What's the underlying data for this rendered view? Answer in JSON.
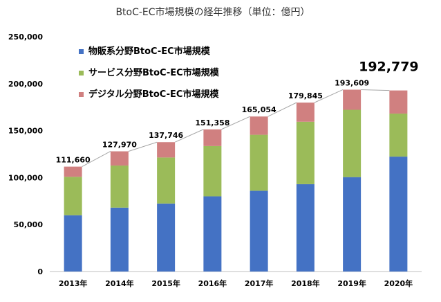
{
  "chart_data": {
    "type": "bar",
    "stacked": true,
    "title": "BtoC-EC市場規模の経年推移（単位：億円）",
    "categories": [
      "2013年",
      "2014年",
      "2015年",
      "2016年",
      "2017年",
      "2018年",
      "2019年",
      "2020年"
    ],
    "series": [
      {
        "name": "物販系分野BtoC-EC市場規模",
        "color": "#4472C4",
        "values": [
          59931,
          68043,
          72398,
          80043,
          86008,
          92992,
          100515,
          122333
        ]
      },
      {
        "name": "サービス分野BtoC-EC市場規模",
        "color": "#9BBB59",
        "values": [
          40934,
          44816,
          49014,
          53532,
          59568,
          66471,
          71672,
          45832
        ]
      },
      {
        "name": "デジタル分野BtoC-EC市場規模",
        "color": "#D08080",
        "values": [
          10795,
          15111,
          16334,
          17783,
          19478,
          20382,
          21422,
          24614
        ]
      }
    ],
    "totals": [
      "111,660",
      "127,970",
      "137,746",
      "151,358",
      "165,054",
      "179,845",
      "193,609",
      "192,779"
    ],
    "total_values": [
      111660,
      127970,
      137746,
      151358,
      165054,
      179845,
      193609,
      192779
    ],
    "highlight_total_index": 7,
    "yticks": [
      "0",
      "50,000",
      "100,000",
      "150,000",
      "200,000",
      "250,000"
    ],
    "ytick_values": [
      0,
      50000,
      100000,
      150000,
      200000,
      250000
    ],
    "ylim": [
      0,
      250000
    ],
    "grid": false,
    "legend_position": "top-left-inside",
    "connector_lines": true
  }
}
